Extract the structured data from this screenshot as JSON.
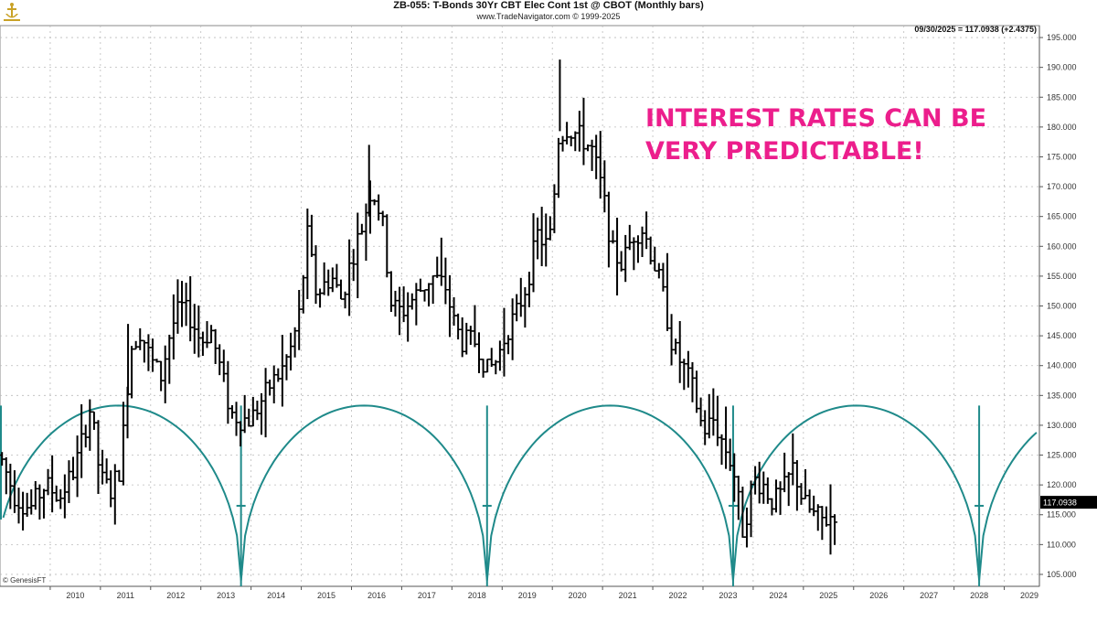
{
  "header": {
    "title": "ZB-055:  T-Bonds 30Yr CBT Elec Cont 1st @ CBOT  (Monthly bars)",
    "subtitle": "www.TradeNavigator.com © 1999-2025",
    "info_line": "09/30/2025 = 117.0938 (+2.4375)",
    "logo_icon": "anchor-logo-icon",
    "logo_color": "#c9a227"
  },
  "annotation": {
    "line1": "INTEREST RATES CAN BE",
    "line2": "VERY PREDICTABLE!",
    "color": "#ec1e8c"
  },
  "footer": {
    "credit": "© GenesisFT"
  },
  "chart_data": {
    "type": "ohlc",
    "title": "ZB-055:  T-Bonds 30Yr CBT Elec Cont 1st @ CBOT  (Monthly bars)",
    "x_ticks": [
      "2010",
      "2011",
      "2012",
      "2013",
      "2014",
      "2015",
      "2016",
      "2017",
      "2018",
      "2019",
      "2020",
      "2021",
      "2022",
      "2023",
      "2024",
      "2025",
      "2026",
      "2027",
      "2028",
      "2029"
    ],
    "y_ticks": [
      "105.000",
      "110.000",
      "115.000",
      "120.000",
      "125.000",
      "130.000",
      "135.000",
      "140.000",
      "145.000",
      "150.000",
      "155.000",
      "160.000",
      "165.000",
      "170.000",
      "175.000",
      "180.000",
      "185.000",
      "190.000",
      "195.000"
    ],
    "ylim": [
      103,
      197
    ],
    "xlim": [
      2009.0,
      2030.0
    ],
    "last_price_label": "117.0938",
    "last_price": 117.09,
    "bar_color": "#000000",
    "cycle_color": "#1f8a8a",
    "cycle_lows": [
      2013.8,
      2018.7,
      2023.6,
      2028.5
    ],
    "cycle_peak": 133.3,
    "cycle_base": 104.0,
    "cycle_marker_level": 116.5,
    "monthly_close_path": [
      [
        2009.0,
        125
      ],
      [
        2009.3,
        118
      ],
      [
        2009.6,
        116
      ],
      [
        2009.9,
        120
      ],
      [
        2010.2,
        118
      ],
      [
        2010.5,
        123
      ],
      [
        2010.8,
        133
      ],
      [
        2011.0,
        121
      ],
      [
        2011.2,
        119
      ],
      [
        2011.4,
        123
      ],
      [
        2011.6,
        143
      ],
      [
        2011.8,
        146
      ],
      [
        2012.0,
        141
      ],
      [
        2012.2,
        138
      ],
      [
        2012.4,
        146
      ],
      [
        2012.6,
        150
      ],
      [
        2012.8,
        148
      ],
      [
        2013.0,
        144
      ],
      [
        2013.2,
        146
      ],
      [
        2013.4,
        139
      ],
      [
        2013.6,
        132
      ],
      [
        2013.8,
        131
      ],
      [
        2014.0,
        131
      ],
      [
        2014.2,
        134
      ],
      [
        2014.4,
        137
      ],
      [
        2014.6,
        139
      ],
      [
        2014.8,
        143
      ],
      [
        2015.0,
        150
      ],
      [
        2015.1,
        163
      ],
      [
        2015.3,
        152
      ],
      [
        2015.6,
        155
      ],
      [
        2015.8,
        151
      ],
      [
        2016.0,
        158
      ],
      [
        2016.2,
        163
      ],
      [
        2016.4,
        170
      ],
      [
        2016.6,
        165
      ],
      [
        2016.8,
        150
      ],
      [
        2017.0,
        149
      ],
      [
        2017.3,
        152
      ],
      [
        2017.6,
        155
      ],
      [
        2017.9,
        153
      ],
      [
        2018.0,
        148
      ],
      [
        2018.2,
        144
      ],
      [
        2018.5,
        144
      ],
      [
        2018.7,
        139
      ],
      [
        2018.9,
        141
      ],
      [
        2019.1,
        146
      ],
      [
        2019.3,
        149
      ],
      [
        2019.5,
        154
      ],
      [
        2019.7,
        162
      ],
      [
        2019.9,
        160
      ],
      [
        2020.0,
        163
      ],
      [
        2020.1,
        178
      ],
      [
        2020.3,
        180
      ],
      [
        2020.6,
        178
      ],
      [
        2020.8,
        176
      ],
      [
        2021.0,
        169
      ],
      [
        2021.2,
        159
      ],
      [
        2021.4,
        157
      ],
      [
        2021.6,
        162
      ],
      [
        2021.8,
        163
      ],
      [
        2022.0,
        158
      ],
      [
        2022.2,
        152
      ],
      [
        2022.4,
        143
      ],
      [
        2022.6,
        140
      ],
      [
        2022.8,
        136
      ],
      [
        2023.0,
        129
      ],
      [
        2023.2,
        131
      ],
      [
        2023.4,
        127
      ],
      [
        2023.6,
        123
      ],
      [
        2023.8,
        112
      ],
      [
        2024.0,
        121
      ],
      [
        2024.2,
        120
      ],
      [
        2024.4,
        117
      ],
      [
        2024.6,
        119
      ],
      [
        2024.8,
        123
      ],
      [
        2025.0,
        117
      ],
      [
        2025.2,
        115
      ],
      [
        2025.4,
        114
      ],
      [
        2025.6,
        115
      ],
      [
        2025.7,
        117.09
      ]
    ]
  }
}
